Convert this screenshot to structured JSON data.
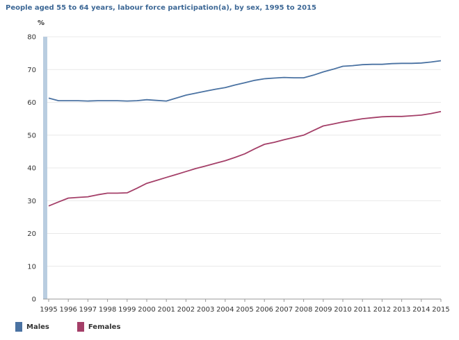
{
  "chart_data": {
    "type": "line",
    "title": "People aged 55 to 64 years, labour force participation(a), by sex, 1995 to 2015",
    "ylabel": "%",
    "xlabel": "",
    "ylim": [
      0,
      80
    ],
    "yticks": [
      0,
      10,
      20,
      30,
      40,
      50,
      60,
      70,
      80
    ],
    "x": [
      "1995",
      "1996",
      "1997",
      "1998",
      "1999",
      "2000",
      "2001",
      "2002",
      "2003",
      "2004",
      "2005",
      "2006",
      "2007",
      "2008",
      "2009",
      "2010",
      "2011",
      "2012",
      "2013",
      "2014",
      "2015"
    ],
    "grid": true,
    "legend_position": "bottom-left",
    "series": [
      {
        "name": "Males",
        "color": "#4a72a2",
        "points": [
          [
            1995.0,
            61.3
          ],
          [
            1995.5,
            60.5
          ],
          [
            1996.0,
            60.5
          ],
          [
            1996.5,
            60.5
          ],
          [
            1997.0,
            60.4
          ],
          [
            1997.5,
            60.5
          ],
          [
            1998.0,
            60.5
          ],
          [
            1998.5,
            60.5
          ],
          [
            1999.0,
            60.4
          ],
          [
            1999.5,
            60.5
          ],
          [
            2000.0,
            60.8
          ],
          [
            2000.5,
            60.6
          ],
          [
            2001.0,
            60.4
          ],
          [
            2001.5,
            61.3
          ],
          [
            2002.0,
            62.2
          ],
          [
            2002.5,
            62.8
          ],
          [
            2003.0,
            63.4
          ],
          [
            2003.5,
            64.0
          ],
          [
            2004.0,
            64.5
          ],
          [
            2004.5,
            65.3
          ],
          [
            2005.0,
            66.0
          ],
          [
            2005.5,
            66.7
          ],
          [
            2006.0,
            67.2
          ],
          [
            2006.5,
            67.4
          ],
          [
            2007.0,
            67.6
          ],
          [
            2007.5,
            67.5
          ],
          [
            2008.0,
            67.5
          ],
          [
            2008.5,
            68.3
          ],
          [
            2009.0,
            69.3
          ],
          [
            2009.5,
            70.1
          ],
          [
            2010.0,
            71.0
          ],
          [
            2010.5,
            71.2
          ],
          [
            2011.0,
            71.5
          ],
          [
            2011.5,
            71.6
          ],
          [
            2012.0,
            71.6
          ],
          [
            2012.5,
            71.8
          ],
          [
            2013.0,
            71.9
          ],
          [
            2013.5,
            71.9
          ],
          [
            2014.0,
            72.0
          ],
          [
            2014.5,
            72.3
          ],
          [
            2015.0,
            72.7
          ]
        ]
      },
      {
        "name": "Females",
        "color": "#a43f68",
        "points": [
          [
            1995.0,
            28.4
          ],
          [
            1995.5,
            29.6
          ],
          [
            1996.0,
            30.8
          ],
          [
            1996.5,
            31.0
          ],
          [
            1997.0,
            31.2
          ],
          [
            1997.5,
            31.8
          ],
          [
            1998.0,
            32.3
          ],
          [
            1998.5,
            32.3
          ],
          [
            1999.0,
            32.4
          ],
          [
            1999.5,
            33.8
          ],
          [
            2000.0,
            35.3
          ],
          [
            2000.5,
            36.2
          ],
          [
            2001.0,
            37.1
          ],
          [
            2001.5,
            38.0
          ],
          [
            2002.0,
            38.9
          ],
          [
            2002.5,
            39.8
          ],
          [
            2003.0,
            40.6
          ],
          [
            2003.5,
            41.4
          ],
          [
            2004.0,
            42.2
          ],
          [
            2004.5,
            43.2
          ],
          [
            2005.0,
            44.3
          ],
          [
            2005.5,
            45.8
          ],
          [
            2006.0,
            47.2
          ],
          [
            2006.5,
            47.8
          ],
          [
            2007.0,
            48.6
          ],
          [
            2007.5,
            49.3
          ],
          [
            2008.0,
            50.0
          ],
          [
            2008.5,
            51.4
          ],
          [
            2009.0,
            52.8
          ],
          [
            2009.5,
            53.4
          ],
          [
            2010.0,
            54.0
          ],
          [
            2010.5,
            54.5
          ],
          [
            2011.0,
            55.0
          ],
          [
            2011.5,
            55.3
          ],
          [
            2012.0,
            55.6
          ],
          [
            2012.5,
            55.7
          ],
          [
            2013.0,
            55.7
          ],
          [
            2013.5,
            55.9
          ],
          [
            2014.0,
            56.1
          ],
          [
            2014.5,
            56.6
          ],
          [
            2015.0,
            57.2
          ]
        ]
      }
    ]
  }
}
